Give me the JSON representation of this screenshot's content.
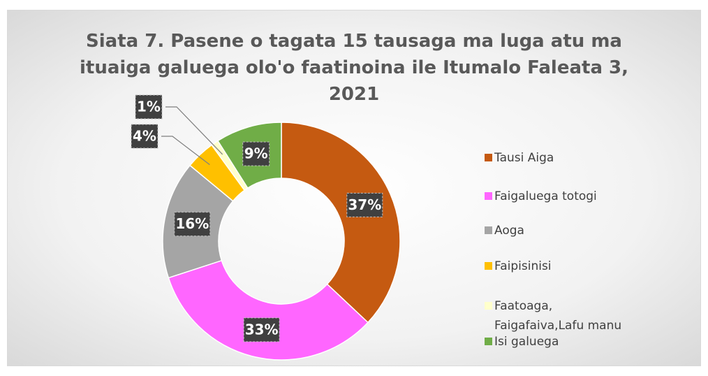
{
  "chart_data": {
    "type": "donut",
    "title": "Siata 7. Pasene o tagata 15 tausaga ma luga atu ma ituaiga galuega olo'o faatinoina ile Itumalo Faleata 3, 2021",
    "categories": [
      "Tausi Aiga",
      "Faigaluega totogi",
      "Aoga",
      "Faipisinisi",
      "Faatoaga, Faigafaiva,Lafu manu",
      "Isi galuega"
    ],
    "values": [
      37,
      33,
      16,
      4,
      1,
      9
    ],
    "value_labels": [
      "37%",
      "33%",
      "16%",
      "4%",
      "1%",
      "9%"
    ],
    "colors": [
      "#c55a11",
      "#ff66ff",
      "#a5a5a5",
      "#ffc000",
      "#ffffcc",
      "#70ad47"
    ],
    "legend": "right"
  }
}
